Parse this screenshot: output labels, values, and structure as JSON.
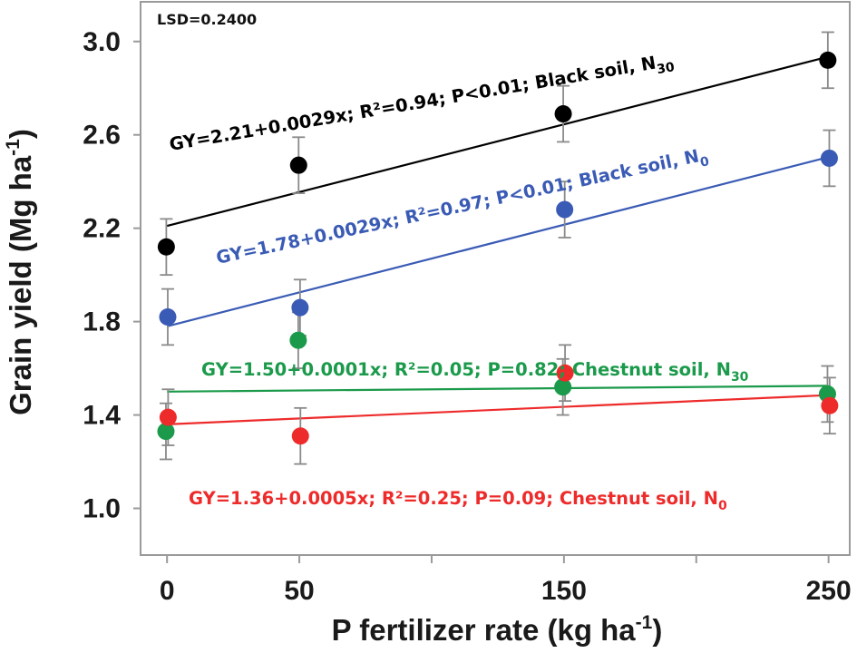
{
  "chart_data": {
    "type": "scatter",
    "xlabel": "P fertilizer rate (kg ha",
    "xlabel_sup": "-1",
    "xlabel_end": ")",
    "ylabel": "Grain yield (Mg ha",
    "ylabel_sup": "-1",
    "ylabel_end": ")",
    "x_ticks": [
      0,
      50,
      150,
      250
    ],
    "x_tick_labels": [
      "0",
      "50",
      "150",
      "250"
    ],
    "x_minor_ticks": [
      100,
      200
    ],
    "y_ticks": [
      1.0,
      1.4,
      1.8,
      2.2,
      2.6,
      3.0
    ],
    "y_tick_labels": [
      "1.0",
      "1.4",
      "1.8",
      "2.2",
      "2.6",
      "3.0"
    ],
    "xlim": [
      -10,
      258
    ],
    "ylim": [
      0.8,
      3.17
    ],
    "annotation": "LSD=0.2400",
    "series": [
      {
        "name": "Black soil, N30",
        "color": "#000000",
        "x": [
          0,
          50,
          150,
          250
        ],
        "y": [
          2.12,
          2.47,
          2.69,
          2.92
        ],
        "err": [
          0.12,
          0.12,
          0.12,
          0.12
        ],
        "fit": {
          "intercept": 2.21,
          "slope": 0.0029
        },
        "equation": {
          "main": "GY=2.21+0.0029x; R²=0.94; P<0.01; Black soil, N",
          "sub": "30"
        }
      },
      {
        "name": "Black soil, N0",
        "color": "#3a5bb5",
        "x": [
          0,
          50,
          150,
          250
        ],
        "y": [
          1.82,
          1.86,
          2.28,
          2.5
        ],
        "err": [
          0.12,
          0.12,
          0.12,
          0.12
        ],
        "fit": {
          "intercept": 1.78,
          "slope": 0.0029
        },
        "equation": {
          "main": "GY=1.78+0.0029x; R²=0.97; P<0.01; Black soil, N",
          "sub": "0"
        }
      },
      {
        "name": "Chestnut soil, N30",
        "color": "#1a9a4a",
        "x": [
          0,
          50,
          150,
          250
        ],
        "y": [
          1.33,
          1.72,
          1.52,
          1.49
        ],
        "err": [
          0.12,
          0.12,
          0.12,
          0.12
        ],
        "fit": {
          "intercept": 1.5,
          "slope": 0.0001
        },
        "equation": {
          "main": "GY=1.50+0.0001x; R²=0.05; P=0.82; Chestnut soil, N",
          "sub": "30"
        }
      },
      {
        "name": "Chestnut soil, N0",
        "color": "#ee2b2b",
        "x": [
          0,
          50,
          150,
          250
        ],
        "y": [
          1.39,
          1.31,
          1.58,
          1.44
        ],
        "err": [
          0.12,
          0.12,
          0.12,
          0.12
        ],
        "fit": {
          "intercept": 1.36,
          "slope": 0.0005
        },
        "equation": {
          "main": "GY=1.36+0.0005x; R²=0.25; P=0.09; Chestnut soil, N",
          "sub": "0"
        }
      }
    ]
  }
}
